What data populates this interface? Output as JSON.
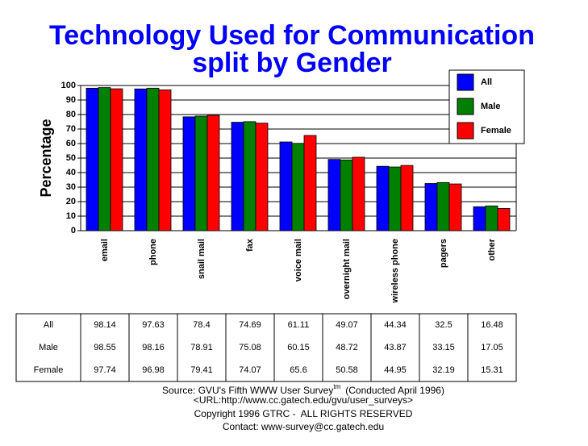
{
  "chart_data": {
    "type": "bar",
    "title": "Technology Used for Communication",
    "subtitle": "split by Gender",
    "y_label": "Percentage",
    "categories": [
      "email",
      "phone",
      "snail mail",
      "fax",
      "voice mail",
      "overnight mail",
      "wireless phone",
      "pagers",
      "other"
    ],
    "series": [
      {
        "name": "All",
        "color": "#0000ff",
        "values": [
          98.14,
          97.63,
          78.4,
          74.69,
          61.11,
          49.07,
          44.34,
          32.5,
          16.48
        ]
      },
      {
        "name": "Male",
        "color": "#008000",
        "values": [
          98.55,
          98.16,
          78.91,
          75.08,
          60.15,
          48.72,
          43.87,
          33.15,
          17.05
        ]
      },
      {
        "name": "Female",
        "color": "#ff0000",
        "values": [
          97.74,
          96.98,
          79.41,
          74.07,
          65.6,
          50.58,
          44.95,
          32.19,
          15.31
        ]
      }
    ],
    "ylim": [
      0,
      100
    ],
    "yticks": [
      0,
      10,
      20,
      30,
      40,
      50,
      60,
      70,
      80,
      90,
      100
    ],
    "grid": true,
    "legend": "top-right",
    "source": {
      "text": "Source: GVU's Fifth WWW User Survey",
      "superscript": "tm",
      "note": "(Conducted April 1996)"
    },
    "url": "<URL:http://www.cc.gatech.edu/gvu/user_surveys>",
    "copyright": "Copyright 1996 GTRC -  ALL RIGHTS RESERVED",
    "contact": "Contact: www-survey@cc.gatech.edu"
  }
}
